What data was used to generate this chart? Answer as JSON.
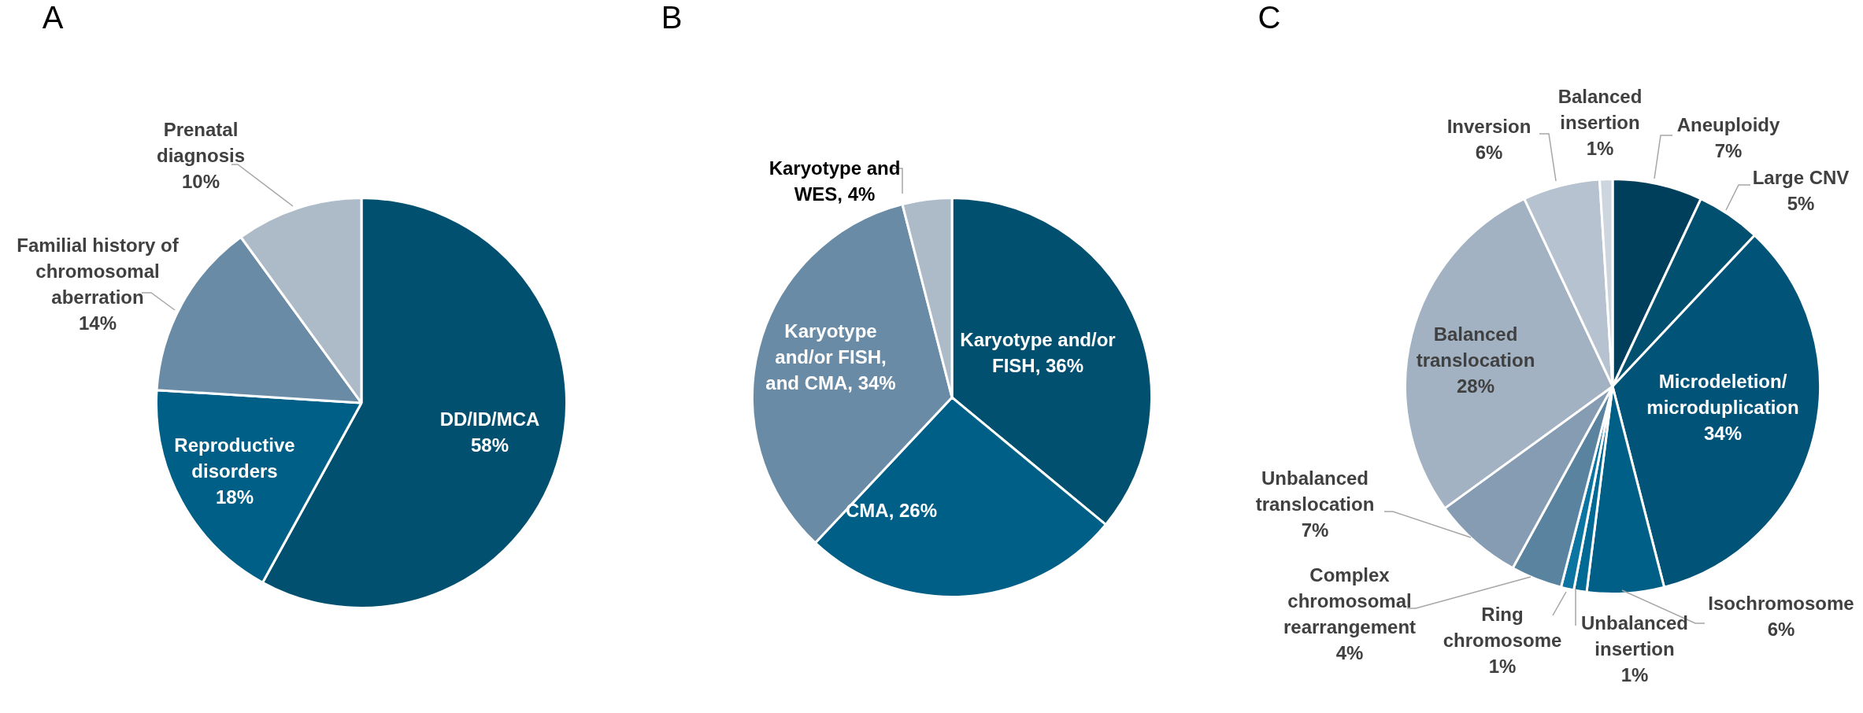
{
  "chart_data": [
    {
      "type": "pie",
      "title": "A",
      "categories": [
        "DD/ID/MCA",
        "Reproductive disorders",
        "Familial history of chromosomal aberration",
        "Prenatal diagnosis"
      ],
      "values": [
        58,
        18,
        14,
        10
      ],
      "value_labels": [
        "58%",
        "18%",
        "14%",
        "10%"
      ],
      "colors": [
        "#02506f",
        "#005f86",
        "#6a8ba5",
        "#adbac8"
      ]
    },
    {
      "type": "pie",
      "title": "B",
      "categories": [
        "Karyotype and/or FISH",
        "CMA",
        "Karyotype and/or FISH, and CMA",
        "Karyotype and WES"
      ],
      "values": [
        36,
        26,
        34,
        4
      ],
      "value_labels": [
        "36%",
        "26%",
        "34%",
        "4%"
      ],
      "colors": [
        "#02506f",
        "#005f86",
        "#6a8ba5",
        "#adbac8"
      ]
    },
    {
      "type": "pie",
      "title": "C",
      "categories": [
        "Aneuploidy",
        "Large CNV",
        "Microdeletion/ microduplication",
        "Isochromosome",
        "Unbalanced insertion",
        "Ring chromosome",
        "Complex chromosomal rearrangement",
        "Unbalanced translocation",
        "Balanced translocation",
        "Inversion",
        "Balanced insertion"
      ],
      "values": [
        7,
        5,
        34,
        6,
        1,
        1,
        4,
        7,
        28,
        6,
        1
      ],
      "value_labels": [
        "7%",
        "5%",
        "34%",
        "6%",
        "1%",
        "1%",
        "4%",
        "7%",
        "28%",
        "6%",
        "1%"
      ],
      "colors": [
        "#003f5c",
        "#02506f",
        "#015478",
        "#005f86",
        "#006a94",
        "#0b74a0",
        "#5a83a0",
        "#869cb2",
        "#a2b2c2",
        "#b6c2cf",
        "#cdd5de"
      ]
    }
  ]
}
